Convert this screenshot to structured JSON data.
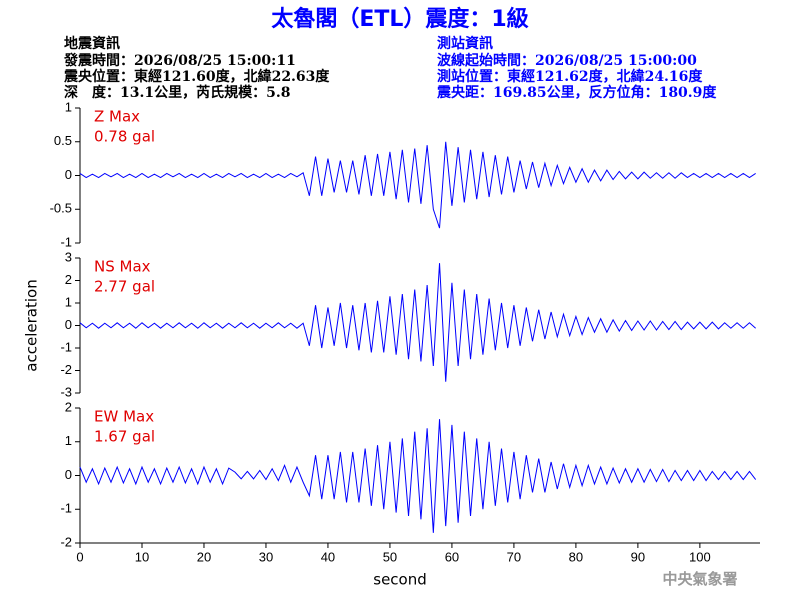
{
  "header": {
    "title": "太魯閣（ETL）震度：1級",
    "left": [
      "地震資訊",
      "發震時間：2026/08/25 15:00:11",
      "震央位置：東經121.60度，北緯22.63度",
      "深　度：13.1公里，芮氏規模：5.8"
    ],
    "right": [
      "測站資訊",
      "波線起始時間：2026/08/25 15:00:00",
      "測站位置：東經121.62度，北緯24.16度",
      "震央距：169.85公里，反方位角：180.9度"
    ]
  },
  "credit": "中央氣象署",
  "chart_data": [
    {
      "type": "line",
      "annotations": [
        "Z Max",
        "0.78 gal"
      ],
      "label_color": "#e00000",
      "color": "#0000ff",
      "xlim": [
        0,
        109.7
      ],
      "ylim": [
        -1,
        1
      ],
      "yticks": [
        -1,
        -0.5,
        0,
        0.5,
        1
      ],
      "x": [
        0,
        1,
        2,
        3,
        4,
        5,
        6,
        7,
        8,
        9,
        10,
        11,
        12,
        13,
        14,
        15,
        16,
        17,
        18,
        19,
        20,
        21,
        22,
        23,
        24,
        25,
        26,
        27,
        28,
        29,
        30,
        31,
        32,
        33,
        34,
        35,
        36,
        37,
        38,
        39,
        40,
        41,
        42,
        43,
        44,
        45,
        46,
        47,
        48,
        49,
        50,
        51,
        52,
        53,
        54,
        55,
        56,
        57,
        58,
        59,
        60,
        61,
        62,
        63,
        64,
        65,
        66,
        67,
        68,
        69,
        70,
        71,
        72,
        73,
        74,
        75,
        76,
        77,
        78,
        79,
        80,
        81,
        82,
        83,
        84,
        85,
        86,
        87,
        88,
        89,
        90,
        91,
        92,
        93,
        94,
        95,
        96,
        97,
        98,
        99,
        100,
        101,
        102,
        103,
        104,
        105,
        106,
        107,
        108,
        109
      ],
      "values": [
        0.03,
        -0.03,
        0.02,
        -0.03,
        0.03,
        -0.02,
        0.03,
        -0.03,
        0.02,
        -0.03,
        0.03,
        -0.03,
        0.02,
        -0.03,
        0.03,
        -0.02,
        0.03,
        -0.03,
        0.02,
        -0.03,
        0.03,
        -0.03,
        0.02,
        -0.03,
        0.03,
        -0.02,
        0.03,
        -0.03,
        0.02,
        -0.03,
        0.03,
        -0.03,
        0.02,
        -0.03,
        0.03,
        -0.02,
        0.04,
        -0.3,
        0.28,
        -0.3,
        0.25,
        -0.25,
        0.22,
        -0.25,
        0.22,
        -0.28,
        0.3,
        -0.3,
        0.32,
        -0.3,
        0.35,
        -0.35,
        0.38,
        -0.4,
        0.4,
        -0.42,
        0.45,
        -0.5,
        -0.78,
        0.5,
        -0.45,
        0.42,
        -0.4,
        0.38,
        -0.35,
        0.35,
        -0.32,
        0.3,
        -0.28,
        0.28,
        -0.25,
        0.22,
        -0.2,
        0.2,
        -0.18,
        0.18,
        -0.15,
        0.15,
        -0.12,
        0.12,
        -0.1,
        0.1,
        -0.1,
        0.08,
        -0.08,
        0.08,
        -0.06,
        0.06,
        -0.05,
        0.05,
        -0.05,
        0.05,
        -0.04,
        0.04,
        -0.04,
        0.04,
        -0.04,
        0.04,
        -0.03,
        0.03,
        -0.03,
        0.03,
        -0.03,
        0.03,
        -0.03,
        0.03,
        -0.03,
        0.03,
        -0.03,
        0.03
      ]
    },
    {
      "type": "line",
      "annotations": [
        "NS Max",
        "2.77 gal"
      ],
      "label_color": "#e00000",
      "color": "#0000ff",
      "ylabel": "acceleration",
      "xlim": [
        0,
        109.7
      ],
      "ylim": [
        -3,
        3
      ],
      "yticks": [
        -3,
        -2,
        -1,
        0,
        1,
        2,
        3
      ],
      "x": [
        0,
        1,
        2,
        3,
        4,
        5,
        6,
        7,
        8,
        9,
        10,
        11,
        12,
        13,
        14,
        15,
        16,
        17,
        18,
        19,
        20,
        21,
        22,
        23,
        24,
        25,
        26,
        27,
        28,
        29,
        30,
        31,
        32,
        33,
        34,
        35,
        36,
        37,
        38,
        39,
        40,
        41,
        42,
        43,
        44,
        45,
        46,
        47,
        48,
        49,
        50,
        51,
        52,
        53,
        54,
        55,
        56,
        57,
        58,
        59,
        60,
        61,
        62,
        63,
        64,
        65,
        66,
        67,
        68,
        69,
        70,
        71,
        72,
        73,
        74,
        75,
        76,
        77,
        78,
        79,
        80,
        81,
        82,
        83,
        84,
        85,
        86,
        87,
        88,
        89,
        90,
        91,
        92,
        93,
        94,
        95,
        96,
        97,
        98,
        99,
        100,
        101,
        102,
        103,
        104,
        105,
        106,
        107,
        108,
        109
      ],
      "values": [
        0.12,
        -0.1,
        0.1,
        -0.12,
        0.1,
        -0.1,
        0.12,
        -0.1,
        0.1,
        -0.12,
        0.12,
        -0.1,
        0.1,
        -0.12,
        0.1,
        -0.1,
        0.12,
        -0.1,
        0.1,
        -0.12,
        0.12,
        -0.1,
        0.1,
        -0.12,
        0.1,
        -0.1,
        0.12,
        -0.1,
        0.1,
        -0.12,
        0.1,
        -0.1,
        0.12,
        -0.1,
        0.1,
        -0.12,
        0.1,
        -0.9,
        0.9,
        -1,
        0.8,
        -0.9,
        1,
        -1,
        0.9,
        -1.1,
        1,
        -1.2,
        1.1,
        -1.2,
        1.3,
        -1.3,
        1.4,
        -1.5,
        1.6,
        -1.6,
        1.8,
        -1.8,
        2.77,
        -2.5,
        1.9,
        -1.8,
        1.6,
        -1.5,
        1.4,
        -1.3,
        1.2,
        -1.1,
        1,
        -1,
        0.9,
        -0.9,
        0.8,
        -0.7,
        0.7,
        -0.6,
        0.6,
        -0.5,
        0.5,
        -0.45,
        0.4,
        -0.4,
        0.35,
        -0.3,
        0.3,
        -0.3,
        0.25,
        -0.25,
        0.22,
        -0.22,
        0.2,
        -0.2,
        0.2,
        -0.2,
        0.18,
        -0.18,
        0.18,
        -0.18,
        0.15,
        -0.15,
        0.15,
        -0.15,
        0.15,
        -0.15,
        0.12,
        -0.12,
        0.12,
        -0.12,
        0.12,
        -0.12
      ]
    },
    {
      "type": "line",
      "annotations": [
        "EW Max",
        "1.67 gal"
      ],
      "label_color": "#e00000",
      "color": "#0000ff",
      "xlabel": "second",
      "xlim": [
        0,
        109.7
      ],
      "xticks": [
        0,
        10,
        20,
        30,
        40,
        50,
        60,
        70,
        80,
        90,
        100
      ],
      "ylim": [
        -2,
        2
      ],
      "yticks": [
        -2,
        -1,
        0,
        1,
        2
      ],
      "x": [
        0,
        1,
        2,
        3,
        4,
        5,
        6,
        7,
        8,
        9,
        10,
        11,
        12,
        13,
        14,
        15,
        16,
        17,
        18,
        19,
        20,
        21,
        22,
        23,
        24,
        25,
        26,
        27,
        28,
        29,
        30,
        31,
        32,
        33,
        34,
        35,
        36,
        37,
        38,
        39,
        40,
        41,
        42,
        43,
        44,
        45,
        46,
        47,
        48,
        49,
        50,
        51,
        52,
        53,
        54,
        55,
        56,
        57,
        58,
        59,
        60,
        61,
        62,
        63,
        64,
        65,
        66,
        67,
        68,
        69,
        70,
        71,
        72,
        73,
        74,
        75,
        76,
        77,
        78,
        79,
        80,
        81,
        82,
        83,
        84,
        85,
        86,
        87,
        88,
        89,
        90,
        91,
        92,
        93,
        94,
        95,
        96,
        97,
        98,
        99,
        100,
        101,
        102,
        103,
        104,
        105,
        106,
        107,
        108,
        109
      ],
      "values": [
        0.25,
        -0.2,
        0.2,
        -0.25,
        0.22,
        -0.2,
        0.25,
        -0.22,
        0.2,
        -0.25,
        0.25,
        -0.2,
        0.2,
        -0.25,
        0.22,
        -0.2,
        0.25,
        -0.22,
        0.2,
        -0.25,
        0.25,
        -0.2,
        0.2,
        -0.25,
        0.22,
        0.1,
        -0.1,
        0.12,
        -0.1,
        0.15,
        -0.12,
        0.2,
        -0.15,
        0.3,
        -0.2,
        0.25,
        -0.2,
        -0.6,
        0.6,
        -0.7,
        0.6,
        -0.7,
        0.7,
        -0.8,
        0.7,
        -0.8,
        0.8,
        -0.9,
        0.9,
        -1,
        1,
        -1.1,
        1.1,
        -1.2,
        1.3,
        -1.3,
        1.4,
        -1.7,
        1.67,
        -1.5,
        1.5,
        -1.4,
        1.3,
        -1.2,
        1.1,
        -1,
        1,
        -0.9,
        0.8,
        -0.8,
        0.7,
        -0.7,
        0.6,
        -0.5,
        0.5,
        -0.5,
        0.4,
        -0.4,
        0.35,
        -0.35,
        0.3,
        -0.3,
        0.3,
        -0.25,
        0.25,
        -0.25,
        0.22,
        -0.22,
        0.2,
        -0.2,
        0.2,
        -0.2,
        0.18,
        -0.18,
        0.18,
        -0.18,
        0.15,
        -0.15,
        0.15,
        -0.15,
        0.15,
        -0.15,
        0.12,
        -0.12,
        0.12,
        -0.12,
        0.12,
        -0.12,
        0.12,
        -0.12
      ]
    }
  ]
}
